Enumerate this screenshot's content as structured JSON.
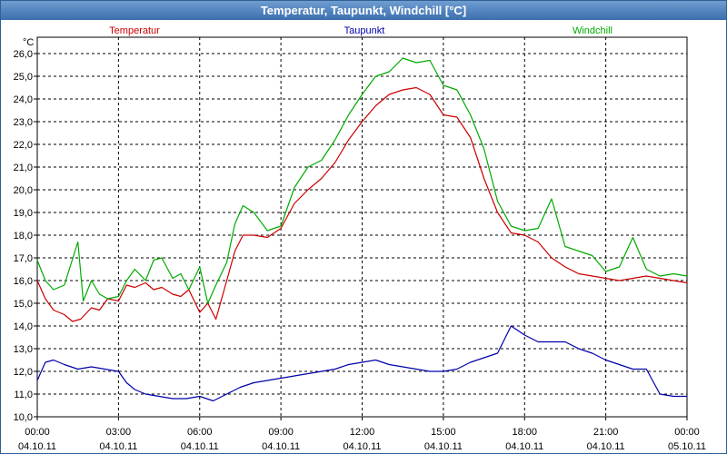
{
  "window": {
    "title": "Temperatur, Taupunkt, Windchill [°C]"
  },
  "chart_data": {
    "type": "line",
    "title": "Temperatur, Taupunkt, Windchill [°C]",
    "ylabel": "°C",
    "ylim": [
      10.0,
      26.0
    ],
    "xlim": [
      0,
      24
    ],
    "grid": true,
    "y_ticks": [
      "10,0",
      "11,0",
      "12,0",
      "13,0",
      "14,0",
      "15,0",
      "16,0",
      "17,0",
      "18,0",
      "19,0",
      "20,0",
      "21,0",
      "22,0",
      "23,0",
      "24,0",
      "25,0",
      "26,0"
    ],
    "x_ticks": [
      {
        "time": "00:00",
        "date": "04.10.11",
        "h": 0
      },
      {
        "time": "03:00",
        "date": "04.10.11",
        "h": 3
      },
      {
        "time": "06:00",
        "date": "04.10.11",
        "h": 6
      },
      {
        "time": "09:00",
        "date": "04.10.11",
        "h": 9
      },
      {
        "time": "12:00",
        "date": "04.10.11",
        "h": 12
      },
      {
        "time": "15:00",
        "date": "04.10.11",
        "h": 15
      },
      {
        "time": "18:00",
        "date": "04.10.11",
        "h": 18
      },
      {
        "time": "21:00",
        "date": "04.10.11",
        "h": 21
      },
      {
        "time": "00:00",
        "date": "05.10.11",
        "h": 24
      }
    ],
    "series": [
      {
        "name": "Temperatur",
        "color": "#cc0000",
        "x": [
          0,
          0.3,
          0.6,
          1,
          1.3,
          1.6,
          2,
          2.3,
          2.6,
          3,
          3.3,
          3.6,
          4,
          4.3,
          4.6,
          5,
          5.3,
          5.6,
          6,
          6.3,
          6.6,
          7,
          7.3,
          7.6,
          8,
          8.5,
          9,
          9.5,
          10,
          10.5,
          11,
          11.5,
          12,
          12.5,
          13,
          13.5,
          14,
          14.5,
          15,
          15.5,
          16,
          16.5,
          17,
          17.5,
          18,
          18.5,
          19,
          19.5,
          20,
          20.5,
          21,
          21.5,
          22,
          22.5,
          23,
          23.5,
          24
        ],
        "values": [
          16.0,
          15.2,
          14.7,
          14.5,
          14.2,
          14.3,
          14.8,
          14.7,
          15.2,
          15.1,
          15.8,
          15.7,
          15.9,
          15.6,
          15.7,
          15.4,
          15.3,
          15.6,
          14.6,
          15.0,
          14.3,
          16.0,
          17.3,
          18.0,
          18.0,
          17.9,
          18.3,
          19.4,
          20.0,
          20.5,
          21.2,
          22.2,
          23.0,
          23.7,
          24.2,
          24.4,
          24.5,
          24.2,
          23.3,
          23.2,
          22.3,
          20.5,
          19.0,
          18.1,
          18.0,
          17.7,
          17.0,
          16.6,
          16.3,
          16.2,
          16.1,
          16.0,
          16.1,
          16.2,
          16.1,
          16.0,
          15.9
        ]
      },
      {
        "name": "Taupunkt",
        "color": "#0000aa",
        "x": [
          0,
          0.3,
          0.6,
          1,
          1.5,
          2,
          2.5,
          3,
          3.3,
          3.6,
          4,
          4.5,
          5,
          5.5,
          6,
          6.5,
          7,
          7.5,
          8,
          8.5,
          9,
          9.5,
          10,
          10.5,
          11,
          11.5,
          12,
          12.5,
          13,
          13.5,
          14,
          14.5,
          15,
          15.5,
          16,
          16.5,
          17,
          17.5,
          18,
          18.5,
          19,
          19.5,
          20,
          20.5,
          21,
          21.5,
          22,
          22.5,
          23,
          23.5,
          24
        ],
        "values": [
          11.6,
          12.4,
          12.5,
          12.3,
          12.1,
          12.2,
          12.1,
          12.0,
          11.5,
          11.2,
          11.0,
          10.9,
          10.8,
          10.8,
          10.9,
          10.7,
          11.0,
          11.3,
          11.5,
          11.6,
          11.7,
          11.8,
          11.9,
          12.0,
          12.1,
          12.3,
          12.4,
          12.5,
          12.3,
          12.2,
          12.1,
          12.0,
          12.0,
          12.1,
          12.4,
          12.6,
          12.8,
          14.0,
          13.6,
          13.3,
          13.3,
          13.3,
          13.0,
          12.8,
          12.5,
          12.3,
          12.1,
          12.1,
          11.0,
          10.9,
          10.9
        ]
      },
      {
        "name": "Windchill",
        "color": "#00aa00",
        "x": [
          0,
          0.3,
          0.6,
          1,
          1.5,
          1.7,
          2,
          2.3,
          2.6,
          3,
          3.3,
          3.6,
          4,
          4.3,
          4.6,
          5,
          5.3,
          5.6,
          6,
          6.3,
          6.6,
          7,
          7.3,
          7.6,
          8,
          8.5,
          9,
          9.5,
          10,
          10.5,
          11,
          11.5,
          12,
          12.5,
          13,
          13.5,
          14,
          14.5,
          15,
          15.5,
          16,
          16.5,
          17,
          17.5,
          18,
          18.5,
          19,
          19.5,
          20,
          20.5,
          21,
          21.5,
          22,
          22.5,
          23,
          23.5,
          24
        ],
        "values": [
          16.9,
          16.0,
          15.6,
          15.8,
          17.7,
          15.1,
          16.0,
          15.4,
          15.2,
          15.3,
          16.0,
          16.5,
          16.0,
          16.9,
          17.0,
          16.1,
          16.3,
          15.6,
          16.6,
          15.0,
          15.8,
          16.8,
          18.5,
          19.3,
          19.0,
          18.2,
          18.4,
          20.1,
          21.0,
          21.3,
          22.2,
          23.3,
          24.2,
          25.0,
          25.2,
          25.8,
          25.6,
          25.7,
          24.6,
          24.4,
          23.3,
          21.8,
          19.5,
          18.4,
          18.2,
          18.3,
          19.6,
          17.5,
          17.3,
          17.1,
          16.4,
          16.6,
          17.9,
          16.5,
          16.2,
          16.3,
          16.2
        ]
      }
    ]
  }
}
